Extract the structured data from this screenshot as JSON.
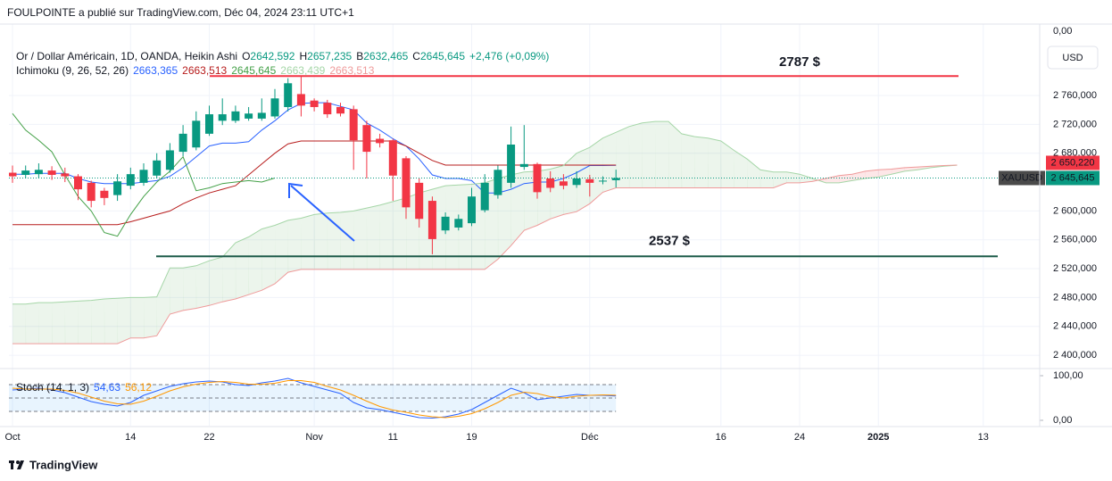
{
  "attribution": "FOULPOINTE a publié sur TradingView.com, Déc 04, 2024 23:11 UTC+1",
  "footer": {
    "brand": "TradingView"
  },
  "chart_data": {
    "type": "candlestick",
    "title": "Or / Dollar Américain, 1D, OANDA, Heikin Ashi",
    "ohlc_legend": [
      {
        "key": "O",
        "value": "2642,592"
      },
      {
        "key": "H",
        "value": "2657,235"
      },
      {
        "key": "B",
        "value": "2632,465"
      },
      {
        "key": "C",
        "value": "2645,645"
      }
    ],
    "change": "+2,476 (+0,09%)",
    "currency": "USD",
    "scale_top_label": "0,00",
    "up_color": "#089981",
    "down_color": "#f23645",
    "grid": true,
    "categories": [
      "Oct",
      null,
      null,
      null,
      null,
      null,
      null,
      null,
      null,
      "14",
      null,
      null,
      null,
      null,
      null,
      "22",
      null,
      null,
      null,
      null,
      null,
      null,
      null,
      "Nov",
      null,
      null,
      null,
      null,
      null,
      "11",
      null,
      null,
      null,
      null,
      null,
      "19",
      null,
      null,
      null,
      null,
      null,
      null,
      null,
      null,
      "Déc",
      null,
      null,
      null,
      null,
      null,
      null,
      null,
      null,
      null,
      "16",
      null,
      null,
      null,
      null,
      null,
      "24",
      null,
      null,
      null,
      null,
      null,
      "2025",
      null,
      null,
      null,
      null,
      null,
      null,
      null,
      "13",
      null,
      null,
      null,
      null
    ],
    "open": [
      2653,
      2650,
      2651,
      2656,
      2652,
      2648,
      2639,
      2628,
      2622,
      2635,
      2639,
      2649,
      2657,
      2682,
      2688,
      2707,
      2725,
      2725,
      2728,
      2728,
      2731,
      2744,
      2762,
      2753,
      2750,
      2744,
      2741,
      2719,
      2700,
      2698,
      2673,
      2639,
      2614,
      2573,
      2577,
      2583,
      2601,
      2622,
      2639,
      2661,
      2665,
      2645,
      2641,
      2636,
      2644,
      2641,
      2642.592,
      null,
      null,
      null,
      null,
      null,
      null,
      null,
      null,
      null,
      null,
      null,
      null,
      null,
      null,
      null,
      null,
      null,
      null,
      null,
      null,
      null,
      null,
      null,
      null,
      null,
      null,
      null,
      null,
      null,
      null,
      null,
      null
    ],
    "high": [
      2663,
      2663,
      2666,
      2662,
      2660,
      2651,
      2642,
      2632,
      2651,
      2660,
      2666,
      2680,
      2694,
      2719,
      2738,
      2746,
      2756,
      2746,
      2744,
      2756,
      2769,
      2784,
      2787,
      2756,
      2754,
      2750,
      2746,
      2725,
      2707,
      2700,
      2676,
      2645,
      2620,
      2598,
      2595,
      2632,
      2651,
      2663,
      2717,
      2719,
      2667,
      2655,
      2651,
      2655,
      2650,
      2648,
      2657.235,
      null,
      null,
      null,
      null,
      null,
      null,
      null,
      null,
      null,
      null,
      null,
      null,
      null,
      null,
      null,
      null,
      null,
      null,
      null,
      null,
      null,
      null,
      null,
      null,
      null,
      null,
      null,
      null,
      null,
      null,
      null,
      null
    ],
    "low": [
      2639,
      2645,
      2645,
      2643,
      2640,
      2615,
      2605,
      2608,
      2614,
      2630,
      2635,
      2645,
      2653,
      2676,
      2684,
      2704,
      2719,
      2722,
      2725,
      2725,
      2728,
      2738,
      2731,
      2738,
      2729,
      2731,
      2657,
      2645,
      2688,
      2614,
      2589,
      2577,
      2540,
      2568,
      2573,
      2579,
      2598,
      2617,
      2632,
      2657,
      2617,
      2626,
      2630,
      2632,
      2620,
      2637,
      2632.465,
      null,
      null,
      null,
      null,
      null,
      null,
      null,
      null,
      null,
      null,
      null,
      null,
      null,
      null,
      null,
      null,
      null,
      null,
      null,
      null,
      null,
      null,
      null,
      null,
      null,
      null,
      null,
      null,
      null,
      null,
      null,
      null
    ],
    "close": [
      2648,
      2656,
      2657,
      2650,
      2648,
      2630,
      2614,
      2618,
      2641,
      2651,
      2657,
      2670,
      2684,
      2707,
      2725,
      2734,
      2734,
      2738,
      2735,
      2736,
      2756,
      2777,
      2746,
      2744,
      2734,
      2735,
      2698,
      2682,
      2694,
      2649,
      2605,
      2589,
      2561,
      2592,
      2589,
      2620,
      2639,
      2657,
      2692,
      2665,
      2626,
      2632,
      2635,
      2645,
      2639,
      2642,
      2645.645,
      null,
      null,
      null,
      null,
      null,
      null,
      null,
      null,
      null,
      null,
      null,
      null,
      null,
      null,
      null,
      null,
      null,
      null,
      null,
      null,
      null,
      null,
      null,
      null,
      null,
      null,
      null,
      null,
      null,
      null,
      null,
      null
    ],
    "ylim": [
      2384,
      2859
    ],
    "yticks": [
      {
        "value": 2760,
        "label": "2 760,000"
      },
      {
        "value": 2720,
        "label": "2 720,000"
      },
      {
        "value": 2680,
        "label": "2 680,000"
      },
      {
        "value": 2600,
        "label": "2 600,000"
      },
      {
        "value": 2560,
        "label": "2 560,000"
      },
      {
        "value": 2520,
        "label": "2 520,000"
      },
      {
        "value": 2480,
        "label": "2 480,000"
      },
      {
        "value": 2440,
        "label": "2 440,000"
      },
      {
        "value": 2400,
        "label": "2 400,000"
      }
    ],
    "horizontal_lines": [
      {
        "value": 2787,
        "label": "2787 $",
        "color": "#f23645"
      },
      {
        "value": 2537,
        "label": "2537 $",
        "color": "#1e5c4a",
        "label_color": "#388e3c"
      }
    ],
    "price_labels": {
      "current": {
        "symbol": "XAUUSD",
        "value": 2645.645,
        "label": "2 645,645",
        "color": "#089981"
      },
      "other": {
        "value": 2650.22,
        "label": "2 650,220",
        "color": "#f23645"
      }
    },
    "ichimoku": {
      "title": "Ichimoku (9, 26, 52, 26)",
      "cloud_up_color": "rgba(67,160,71,0.10)",
      "cloud_down_color": "rgba(242,54,69,0.12)",
      "lines": [
        {
          "color": "#2962ff",
          "legend": "2663,365",
          "values": [
            2651,
            2651,
            2652,
            2652,
            2652,
            2645,
            2640,
            2638,
            2638,
            2638,
            2640,
            2642,
            2648,
            2660,
            2675,
            2690,
            2694,
            2694,
            2696,
            2712,
            2725,
            2740,
            2749,
            2750,
            2750,
            2745,
            2740,
            2722,
            2712,
            2700,
            2690,
            2672,
            2650,
            2645,
            2645,
            2642,
            2625,
            2625,
            2630,
            2638,
            2640,
            2640,
            2645,
            2653,
            2663,
            2663,
            2663.365,
            null,
            null,
            null,
            null,
            null,
            null,
            null,
            null,
            null,
            null,
            null,
            null,
            null,
            null,
            null,
            null,
            null,
            null,
            null,
            null,
            null,
            null,
            null,
            null,
            null,
            null,
            null,
            null,
            null,
            null,
            null,
            null
          ]
        },
        {
          "color": "#b71c1c",
          "legend": "2663,513",
          "values": [
            2581,
            2581,
            2581,
            2581,
            2581,
            2581,
            2581,
            2581,
            2581,
            2585,
            2590,
            2595,
            2600,
            2610,
            2618,
            2625,
            2630,
            2635,
            2650,
            2665,
            2680,
            2693,
            2697,
            2697,
            2697,
            2697,
            2697,
            2697,
            2697,
            2697,
            2690,
            2680,
            2670,
            2663.513,
            2663.513,
            2663.513,
            2663.513,
            2663.513,
            2663.513,
            2663.513,
            2663.513,
            2663.513,
            2663.513,
            2663.513,
            2663.513,
            2663.513,
            2663.513,
            null,
            null,
            null,
            null,
            null,
            null,
            null,
            null,
            null,
            null,
            null,
            null,
            null,
            null,
            null,
            null,
            null,
            null,
            null,
            null,
            null,
            null,
            null,
            null,
            null,
            null,
            null,
            null,
            null,
            null,
            null,
            null
          ]
        },
        {
          "color": "#43a047",
          "legend": "2645,645",
          "values": [
            2735,
            2712,
            2698,
            2682,
            2650,
            2620,
            2600,
            2570,
            2565,
            2595,
            2620,
            2640,
            2655,
            2675,
            2628,
            2632,
            2638,
            2640,
            2642,
            2640,
            2645.645,
            null,
            null,
            null,
            null,
            null,
            null,
            null,
            null,
            null,
            null,
            null,
            null,
            null,
            null,
            null,
            null,
            null,
            null,
            null,
            null,
            null,
            null,
            null,
            null,
            null,
            null,
            null,
            null,
            null,
            null,
            null,
            null,
            null,
            null,
            null,
            null,
            null,
            null,
            null,
            null,
            null,
            null,
            null,
            null,
            null,
            null,
            null,
            null,
            null,
            null,
            null,
            null,
            null,
            null,
            null,
            null,
            null
          ]
        },
        {
          "color": "#a5d6a7",
          "legend": "2663,439",
          "values": [
            2471,
            2471,
            2473,
            2473,
            2474,
            2475,
            2476,
            2478,
            2479,
            2480,
            2480,
            2481,
            2521,
            2521,
            2524,
            2531,
            2536,
            2556,
            2564,
            2575,
            2580,
            2587,
            2590,
            2595,
            2597,
            2598,
            2600,
            2604,
            2608,
            2613,
            2618,
            2625,
            2630,
            2635,
            2636,
            2637,
            2639,
            2645,
            2650,
            2654,
            2655,
            2658,
            2663,
            2680,
            2688,
            2701,
            2709,
            2717,
            2722,
            2724,
            2724,
            2707,
            2703,
            2701,
            2697,
            2684,
            2672,
            2657,
            2654,
            2654,
            2651,
            2645,
            2639,
            2639,
            2642,
            2645,
            2647,
            2651,
            2655,
            2657,
            2660,
            2662,
            2663.439,
            null,
            null,
            null,
            null,
            null,
            null
          ]
        },
        {
          "color": "#ef9a9a",
          "legend": "2663,513",
          "values": [
            2416,
            2416,
            2416,
            2416,
            2416,
            2416,
            2416,
            2416,
            2416,
            2424,
            2424,
            2427,
            2457,
            2462,
            2465,
            2469,
            2474,
            2478,
            2484,
            2490,
            2499,
            2515,
            2519,
            2519,
            2519,
            2519,
            2519,
            2519,
            2519,
            2519,
            2519,
            2519,
            2519,
            2519,
            2519,
            2519,
            2519,
            2533,
            2552,
            2573,
            2580,
            2589,
            2595,
            2599,
            2610,
            2626,
            2632,
            2632,
            2632,
            2632,
            2632,
            2632,
            2632,
            2632,
            2632,
            2632,
            2632,
            2632,
            2632,
            2639,
            2639,
            2641,
            2645,
            2649,
            2651,
            2655,
            2657,
            2658,
            2660,
            2661,
            2662,
            2663,
            2663.513,
            null,
            null,
            null,
            null,
            null,
            null
          ]
        }
      ]
    },
    "stochastic": {
      "type": "line",
      "title": "Stoch (14, 1, 3)",
      "ylim": [
        -12,
        112
      ],
      "yticks": [
        {
          "value": 100,
          "label": "100,00"
        },
        {
          "value": 0,
          "label": "0,00"
        }
      ],
      "bands": [
        80,
        50,
        20
      ],
      "band_color": "rgba(33,150,243,0.10)",
      "series": [
        {
          "color": "#2962ff",
          "legend": "54,63",
          "values": [
            68,
            70,
            72,
            68,
            62,
            52,
            42,
            36,
            32,
            40,
            56,
            66,
            76,
            82,
            86,
            88,
            86,
            80,
            78,
            84,
            88,
            94,
            84,
            76,
            68,
            60,
            40,
            28,
            24,
            18,
            12,
            6,
            5,
            8,
            14,
            24,
            40,
            56,
            72,
            62,
            46,
            50,
            54,
            58,
            56,
            56,
            54.63,
            null,
            null,
            null,
            null,
            null,
            null,
            null,
            null,
            null,
            null,
            null,
            null,
            null,
            null,
            null,
            null,
            null,
            null,
            null,
            null,
            null,
            null,
            null,
            null,
            null,
            null,
            null,
            null,
            null,
            null,
            null,
            null
          ]
        },
        {
          "color": "#ff9800",
          "legend": "56,12",
          "values": [
            72,
            70,
            70,
            70,
            67,
            61,
            52,
            43,
            37,
            36,
            43,
            54,
            66,
            75,
            81,
            85,
            87,
            85,
            81,
            81,
            83,
            89,
            89,
            85,
            76,
            68,
            56,
            43,
            31,
            23,
            18,
            12,
            8,
            6,
            9,
            15,
            26,
            40,
            56,
            63,
            60,
            53,
            50,
            54,
            56,
            57,
            56.12,
            null,
            null,
            null,
            null,
            null,
            null,
            null,
            null,
            null,
            null,
            null,
            null,
            null,
            null,
            null,
            null,
            null,
            null,
            null,
            null,
            null,
            null,
            null,
            null,
            null,
            null,
            null,
            null,
            null,
            null,
            null,
            null
          ]
        }
      ]
    }
  }
}
